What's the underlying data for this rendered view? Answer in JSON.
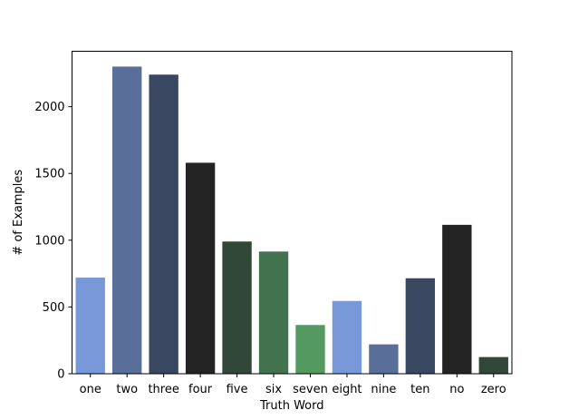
{
  "chart_data": {
    "type": "bar",
    "title": "",
    "xlabel": "Truth Word",
    "ylabel": "# of Examples",
    "categories": [
      "one",
      "two",
      "three",
      "four",
      "five",
      "six",
      "seven",
      "eight",
      "nine",
      "ten",
      "no",
      "zero"
    ],
    "values": [
      720,
      2300,
      2240,
      1580,
      990,
      915,
      365,
      545,
      220,
      715,
      1115,
      125
    ],
    "colors": [
      "#7898d8",
      "#5a6e9a",
      "#394860",
      "#232323",
      "#314737",
      "#42724e",
      "#539960",
      "#7898d8",
      "#5a6e9a",
      "#394860",
      "#232323",
      "#314737"
    ],
    "ylim": [
      0,
      2415
    ],
    "yticks": [
      0,
      500,
      1000,
      1500,
      2000
    ],
    "grid": false,
    "legend": "none"
  }
}
